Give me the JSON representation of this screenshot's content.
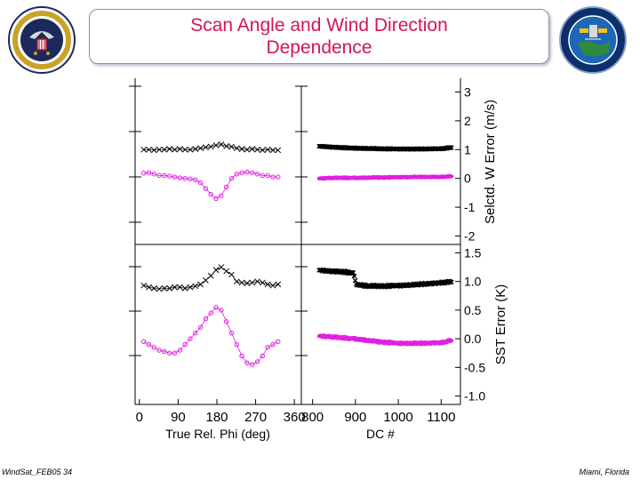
{
  "header": {
    "title_line1": "Scan Angle and Wind Direction",
    "title_line2": "Dependence"
  },
  "footer": {
    "left": "WindSat_FEB05 34",
    "right": "Miami, Florida"
  },
  "colors": {
    "title": "#d4145a",
    "series_black": "#000000",
    "series_magenta": "#e020e0"
  },
  "chart_data": {
    "type": "scatter",
    "panels": [
      {
        "name": "top-left",
        "xlim": [
          0,
          360
        ],
        "ylim": [
          -2,
          3
        ],
        "series": [
          {
            "marker": "x",
            "color": "#000000",
            "x": [
              10,
              22,
              34,
              46,
              58,
              70,
              82,
              94,
              106,
              118,
              130,
              142,
              154,
              166,
              178,
              190,
              202,
              214,
              226,
              238,
              250,
              262,
              274,
              286,
              298,
              310,
              322
            ],
            "y": [
              1.0,
              1.0,
              0.98,
              1.0,
              1.0,
              1.02,
              1.0,
              1.02,
              1.0,
              1.0,
              1.02,
              1.05,
              1.08,
              1.1,
              1.15,
              1.18,
              1.12,
              1.1,
              1.05,
              1.02,
              1.0,
              1.02,
              1.0,
              0.98,
              1.0,
              0.98,
              0.98
            ]
          },
          {
            "marker": "o",
            "color": "#e020e0",
            "x": [
              10,
              22,
              34,
              46,
              58,
              70,
              82,
              94,
              106,
              118,
              130,
              142,
              154,
              166,
              178,
              190,
              202,
              214,
              226,
              238,
              250,
              262,
              274,
              286,
              298,
              310,
              322
            ],
            "y": [
              0.18,
              0.2,
              0.15,
              0.1,
              0.1,
              0.08,
              0.05,
              0.02,
              0.0,
              -0.02,
              -0.05,
              -0.15,
              -0.35,
              -0.55,
              -0.7,
              -0.6,
              -0.3,
              0.0,
              0.15,
              0.2,
              0.22,
              0.2,
              0.15,
              0.1,
              0.1,
              0.05,
              0.05
            ]
          }
        ]
      },
      {
        "name": "top-right",
        "xlim": [
          800,
          1140
        ],
        "ylim": [
          -2,
          3
        ],
        "series": [
          {
            "marker": "x",
            "color": "#000000",
            "dense": true,
            "x": [
              815,
              850,
              900,
              950,
              1000,
              1050,
              1100,
              1125
            ],
            "y": [
              1.12,
              1.08,
              1.05,
              1.03,
              1.02,
              1.02,
              1.03,
              1.08
            ]
          },
          {
            "marker": "o",
            "color": "#e020e0",
            "dense": true,
            "x": [
              815,
              850,
              900,
              950,
              1000,
              1050,
              1100,
              1125
            ],
            "y": [
              0.0,
              0.02,
              0.02,
              0.03,
              0.04,
              0.05,
              0.05,
              0.08
            ]
          }
        ]
      },
      {
        "name": "bottom-left",
        "xlim": [
          0,
          360
        ],
        "ylim": [
          -1.0,
          1.5
        ],
        "series": [
          {
            "marker": "x",
            "color": "#000000",
            "x": [
              10,
              22,
              34,
              46,
              58,
              70,
              82,
              94,
              106,
              118,
              130,
              142,
              154,
              166,
              178,
              190,
              202,
              214,
              226,
              238,
              250,
              262,
              274,
              286,
              298,
              310,
              322
            ],
            "y": [
              0.93,
              0.9,
              0.88,
              0.87,
              0.88,
              0.88,
              0.9,
              0.9,
              0.88,
              0.9,
              0.92,
              0.95,
              1.02,
              1.1,
              1.2,
              1.25,
              1.18,
              1.12,
              1.0,
              0.98,
              0.97,
              0.98,
              1.0,
              0.98,
              0.95,
              0.93,
              0.95
            ]
          },
          {
            "marker": "o",
            "color": "#e020e0",
            "x": [
              10,
              22,
              34,
              46,
              58,
              70,
              82,
              94,
              106,
              118,
              130,
              142,
              154,
              166,
              178,
              190,
              202,
              214,
              226,
              238,
              250,
              262,
              274,
              286,
              298,
              310,
              322
            ],
            "y": [
              -0.05,
              -0.1,
              -0.15,
              -0.2,
              -0.22,
              -0.25,
              -0.25,
              -0.2,
              -0.1,
              0.0,
              0.1,
              0.2,
              0.35,
              0.45,
              0.55,
              0.5,
              0.3,
              0.1,
              -0.1,
              -0.3,
              -0.42,
              -0.45,
              -0.4,
              -0.3,
              -0.15,
              -0.1,
              -0.05
            ]
          }
        ]
      },
      {
        "name": "bottom-right",
        "xlim": [
          800,
          1140
        ],
        "ylim": [
          -1.0,
          1.5
        ],
        "series": [
          {
            "marker": "x",
            "color": "#000000",
            "dense": true,
            "x": [
              815,
              840,
              870,
              895,
              902,
              930,
              970,
              1010,
              1050,
              1090,
              1125
            ],
            "y": [
              1.2,
              1.18,
              1.17,
              1.15,
              0.95,
              0.92,
              0.92,
              0.93,
              0.95,
              0.97,
              1.0
            ]
          },
          {
            "marker": "o",
            "color": "#e020e0",
            "dense": true,
            "x": [
              815,
              850,
              900,
              950,
              1000,
              1050,
              1100,
              1125
            ],
            "y": [
              0.05,
              0.03,
              0.0,
              -0.05,
              -0.08,
              -0.08,
              -0.07,
              -0.02
            ]
          }
        ]
      }
    ],
    "x_left": {
      "ticks": [
        0,
        90,
        180,
        270,
        360
      ],
      "xlabel": "True Rel. Phi (deg)"
    },
    "x_right": {
      "ticks": [
        800,
        900,
        1000,
        1100
      ],
      "xlabel": "DC #"
    },
    "y_top": {
      "ticks": [
        3,
        2,
        1,
        0,
        -1,
        -2
      ],
      "tick_labels": [
        "3",
        "2",
        "1",
        "0",
        "-1",
        "-2"
      ],
      "ylabel": "Selctd. W Error (m/s)"
    },
    "y_bottom": {
      "ticks": [
        1.5,
        1.0,
        0.5,
        0.0,
        -0.5,
        -1.0
      ],
      "tick_labels": [
        "1.5",
        "1.0",
        "0.5",
        "0.0",
        "-0.5",
        "-1.0"
      ],
      "ylabel": "SST Error (K)"
    }
  }
}
